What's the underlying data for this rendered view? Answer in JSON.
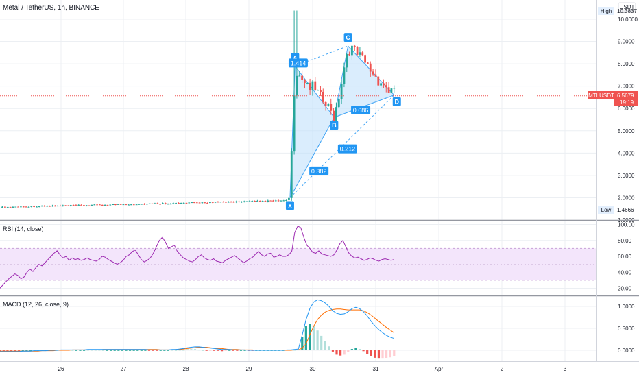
{
  "header": {
    "title": "Metal / TetherUS, 1h, BINANCE",
    "currency": "USDT"
  },
  "price_tags": {
    "high_label": "High",
    "high_value": "10.3837",
    "low_label": "Low",
    "low_value": "1.4666",
    "symbol": "MTLUSDT",
    "last_value": "6.5679",
    "countdown": "19:19"
  },
  "colors": {
    "up": "#26a69a",
    "down": "#ef5350",
    "pattern_fill": "#bbdefb",
    "pattern_line": "#42a5f5",
    "label_bg": "#2196f3",
    "rsi_line": "#9c27b0",
    "rsi_band": "#f3e5fb",
    "macd_line": "#2196f3",
    "signal_line": "#ff6d00",
    "grid": "#eceff3"
  },
  "chart_data": [
    {
      "type": "candlestick",
      "x_ticks": [
        "26",
        "27",
        "28",
        "29",
        "30",
        "31",
        "Apr",
        "2",
        "3"
      ],
      "y_ticks": [
        1.0,
        2.0,
        3.0,
        4.0,
        5.0,
        6.0,
        7.0,
        8.0,
        9.0,
        10.0
      ],
      "y_tick_labels": [
        "1.0000",
        "2.0000",
        "3.0000",
        "4.0000",
        "5.0000",
        "6.0000",
        "7.0000",
        "8.0000",
        "9.0000",
        "10.0000"
      ],
      "ylim": [
        0.9,
        10.6
      ],
      "last_price": 6.5679,
      "high": 10.3837,
      "low": 1.4666,
      "pattern": {
        "points": [
          {
            "label": "X",
            "price": 2.0
          },
          {
            "label": "A",
            "price": 7.9
          },
          {
            "label": "B",
            "price": 5.6
          },
          {
            "label": "C",
            "price": 8.8
          },
          {
            "label": "D",
            "price": 6.6
          }
        ],
        "ratios": [
          "0.382",
          "1.414",
          "0.686",
          "0.212"
        ]
      }
    },
    {
      "type": "line",
      "name": "RSI (14, close)",
      "y_ticks": [
        20.0,
        40.0,
        60.0,
        80.0,
        100.0
      ],
      "y_tick_labels": [
        "20.00",
        "40.00",
        "60.00",
        "80.00",
        "100.00"
      ],
      "band": [
        30,
        70
      ],
      "ylim": [
        19,
        101
      ],
      "values": [
        20,
        24,
        28,
        32,
        35,
        38,
        36,
        32,
        34,
        40,
        44,
        41,
        46,
        50,
        48,
        52,
        56,
        60,
        64,
        67,
        62,
        58,
        60,
        55,
        58,
        56,
        57,
        55,
        56,
        58,
        56,
        55,
        54,
        56,
        60,
        59,
        56,
        54,
        52,
        50,
        52,
        55,
        60,
        62,
        66,
        68,
        62,
        56,
        53,
        55,
        58,
        64,
        72,
        80,
        84,
        78,
        70,
        72,
        74,
        66,
        62,
        58,
        56,
        54,
        53,
        56,
        60,
        62,
        58,
        56,
        55,
        57,
        54,
        53,
        52,
        55,
        57,
        59,
        61,
        58,
        55,
        52,
        54,
        57,
        59,
        63,
        66,
        62,
        60,
        63,
        64,
        59,
        60,
        62,
        60,
        60,
        62,
        66,
        90,
        98,
        96,
        84,
        74,
        70,
        65,
        64,
        67,
        63,
        62,
        61,
        60,
        62,
        68,
        76,
        80,
        72,
        64,
        60,
        58,
        59,
        57,
        55,
        56,
        58,
        57,
        55,
        54,
        56,
        57,
        56,
        55,
        56
      ]
    },
    {
      "type": "line",
      "name": "MACD (12, 26, close, 9)",
      "y_ticks": [
        0.0,
        0.5,
        1.0
      ],
      "y_tick_labels": [
        "0.0000",
        "0.5000",
        "1.0000"
      ],
      "ylim": [
        -0.2,
        1.15
      ],
      "series": [
        {
          "name": "MACD",
          "values": [
            -0.03,
            -0.03,
            -0.03,
            -0.03,
            -0.03,
            -0.03,
            -0.02,
            -0.02,
            -0.02,
            -0.01,
            -0.01,
            -0.01,
            -0.01,
            0.0,
            0.0,
            0.0,
            0.01,
            0.01,
            0.01,
            0.01,
            0.01,
            0.01,
            0.01,
            0.02,
            0.02,
            0.02,
            0.02,
            0.02,
            0.02,
            0.02,
            0.02,
            0.02,
            0.02,
            0.02,
            0.02,
            0.02,
            0.02,
            0.02,
            0.02,
            0.01,
            0.01,
            0.01,
            0.01,
            0.01,
            0.01,
            0.02,
            0.02,
            0.03,
            0.04,
            0.06,
            0.07,
            0.08,
            0.08,
            0.07,
            0.06,
            0.05,
            0.04,
            0.03,
            0.02,
            0.02,
            0.02,
            0.01,
            0.01,
            0.01,
            0.01,
            0.0,
            0.0,
            0.0,
            0.0,
            0.0,
            0.0,
            0.0,
            0.0,
            0.0,
            0.0,
            0.01,
            0.01,
            0.02,
            0.03,
            0.35,
            0.7,
            0.95,
            1.1,
            1.15,
            1.13,
            1.08,
            1.0,
            0.9,
            0.84,
            0.82,
            0.83,
            0.88,
            0.95,
            0.98,
            0.95,
            0.88,
            0.78,
            0.66,
            0.56,
            0.47,
            0.4,
            0.34,
            0.3,
            0.27
          ]
        },
        {
          "name": "Signal",
          "values": [
            -0.02,
            -0.02,
            -0.02,
            -0.02,
            -0.02,
            -0.02,
            -0.02,
            -0.02,
            -0.02,
            -0.02,
            -0.02,
            -0.01,
            -0.01,
            -0.01,
            -0.01,
            0.0,
            0.0,
            0.0,
            0.0,
            0.01,
            0.01,
            0.01,
            0.01,
            0.01,
            0.01,
            0.01,
            0.01,
            0.02,
            0.02,
            0.02,
            0.02,
            0.02,
            0.02,
            0.02,
            0.02,
            0.02,
            0.02,
            0.02,
            0.02,
            0.02,
            0.02,
            0.02,
            0.01,
            0.01,
            0.01,
            0.01,
            0.02,
            0.02,
            0.03,
            0.04,
            0.05,
            0.06,
            0.07,
            0.07,
            0.07,
            0.06,
            0.05,
            0.04,
            0.04,
            0.03,
            0.02,
            0.02,
            0.02,
            0.01,
            0.01,
            0.01,
            0.01,
            0.0,
            0.0,
            0.0,
            0.0,
            0.0,
            0.0,
            0.0,
            0.0,
            0.0,
            0.0,
            0.01,
            0.01,
            0.05,
            0.15,
            0.35,
            0.55,
            0.7,
            0.8,
            0.87,
            0.91,
            0.93,
            0.94,
            0.94,
            0.93,
            0.92,
            0.92,
            0.92,
            0.92,
            0.9,
            0.86,
            0.8,
            0.73,
            0.66,
            0.59,
            0.52,
            0.46,
            0.4
          ]
        }
      ]
    }
  ]
}
